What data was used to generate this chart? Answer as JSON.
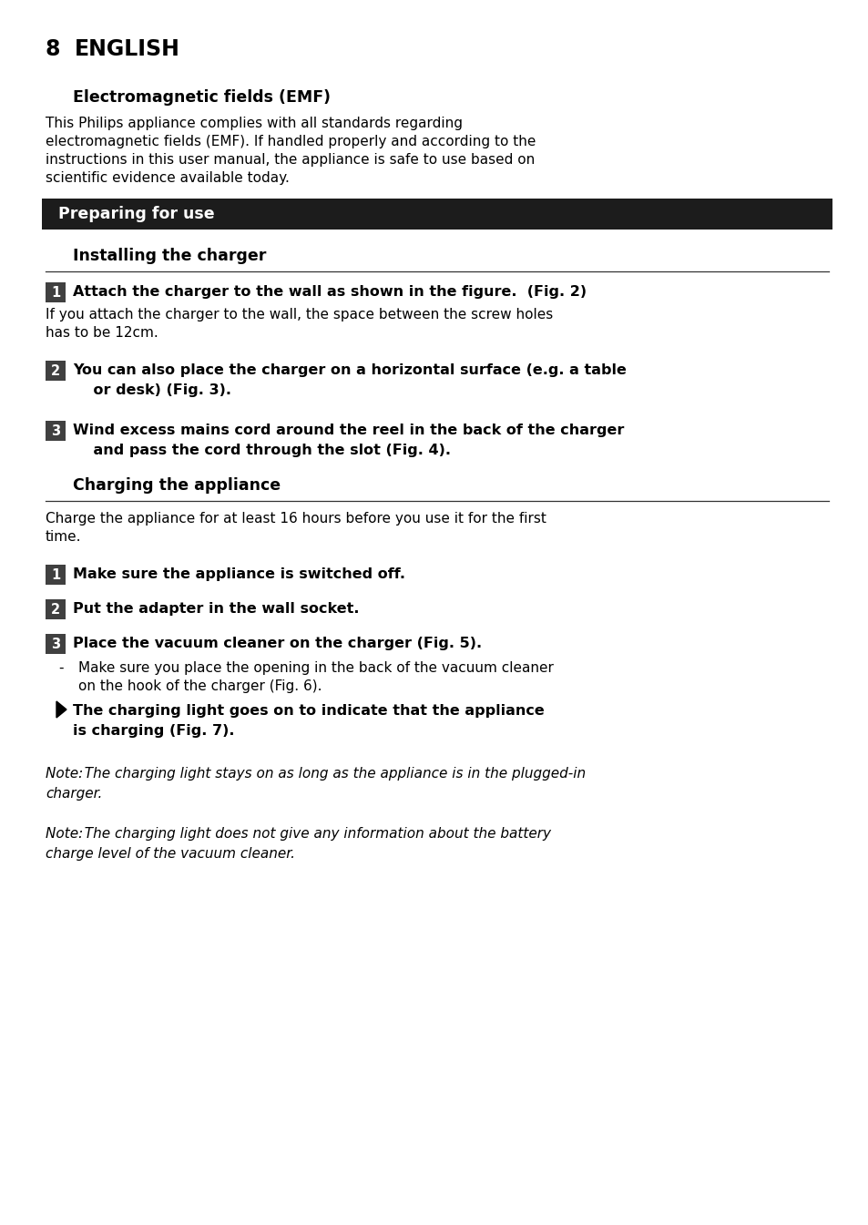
{
  "bg_color": "#ffffff",
  "page_number": "8",
  "page_title": "ENGLISH",
  "emf_heading": "Electromagnetic fields (EMF)",
  "emf_lines": [
    "This Philips appliance complies with all standards regarding",
    "electromagnetic fields (EMF). If handled properly and according to the",
    "instructions in this user manual, the appliance is safe to use based on",
    "scientific evidence available today."
  ],
  "section1_heading": "Preparing for use",
  "section2_heading": "Installing the charger",
  "step1_bold": "Attach the charger to the wall as shown in the figure.  (Fig. 2)",
  "step1_normal_lines": [
    "If you attach the charger to the wall, the space between the screw holes",
    "has to be 12cm."
  ],
  "step2_lines": [
    "You can also place the charger on a horizontal surface (e.g. a table",
    "    or desk) (Fig. 3)."
  ],
  "step3_lines": [
    "Wind excess mains cord around the reel in the back of the charger",
    "    and pass the cord through the slot (Fig. 4)."
  ],
  "section3_heading": "Charging the appliance",
  "charge_intro_lines": [
    "Charge the appliance for at least 16 hours before you use it for the first",
    "time."
  ],
  "charge_step1": "Make sure the appliance is switched off.",
  "charge_step2": "Put the adapter in the wall socket.",
  "charge_step3_bold": "Place the vacuum cleaner on the charger (Fig. 5).",
  "charge_sub1_lines": [
    "Make sure you place the opening in the back of the vacuum cleaner",
    "on the hook of the charger (Fig. 6)."
  ],
  "charge_sub2_lines": [
    "The charging light goes on to indicate that the appliance",
    "is charging (Fig. 7)."
  ],
  "note1_lines": [
    "Note: The charging light stays on as long as the appliance is in the plugged-in",
    "charger."
  ],
  "note2_lines": [
    "Note: The charging light does not give any information about the battery",
    "charge level of the vacuum cleaner."
  ],
  "dark_bg": "#1c1c1c",
  "number_bg": "#404040",
  "text_color": "#000000",
  "white": "#ffffff"
}
